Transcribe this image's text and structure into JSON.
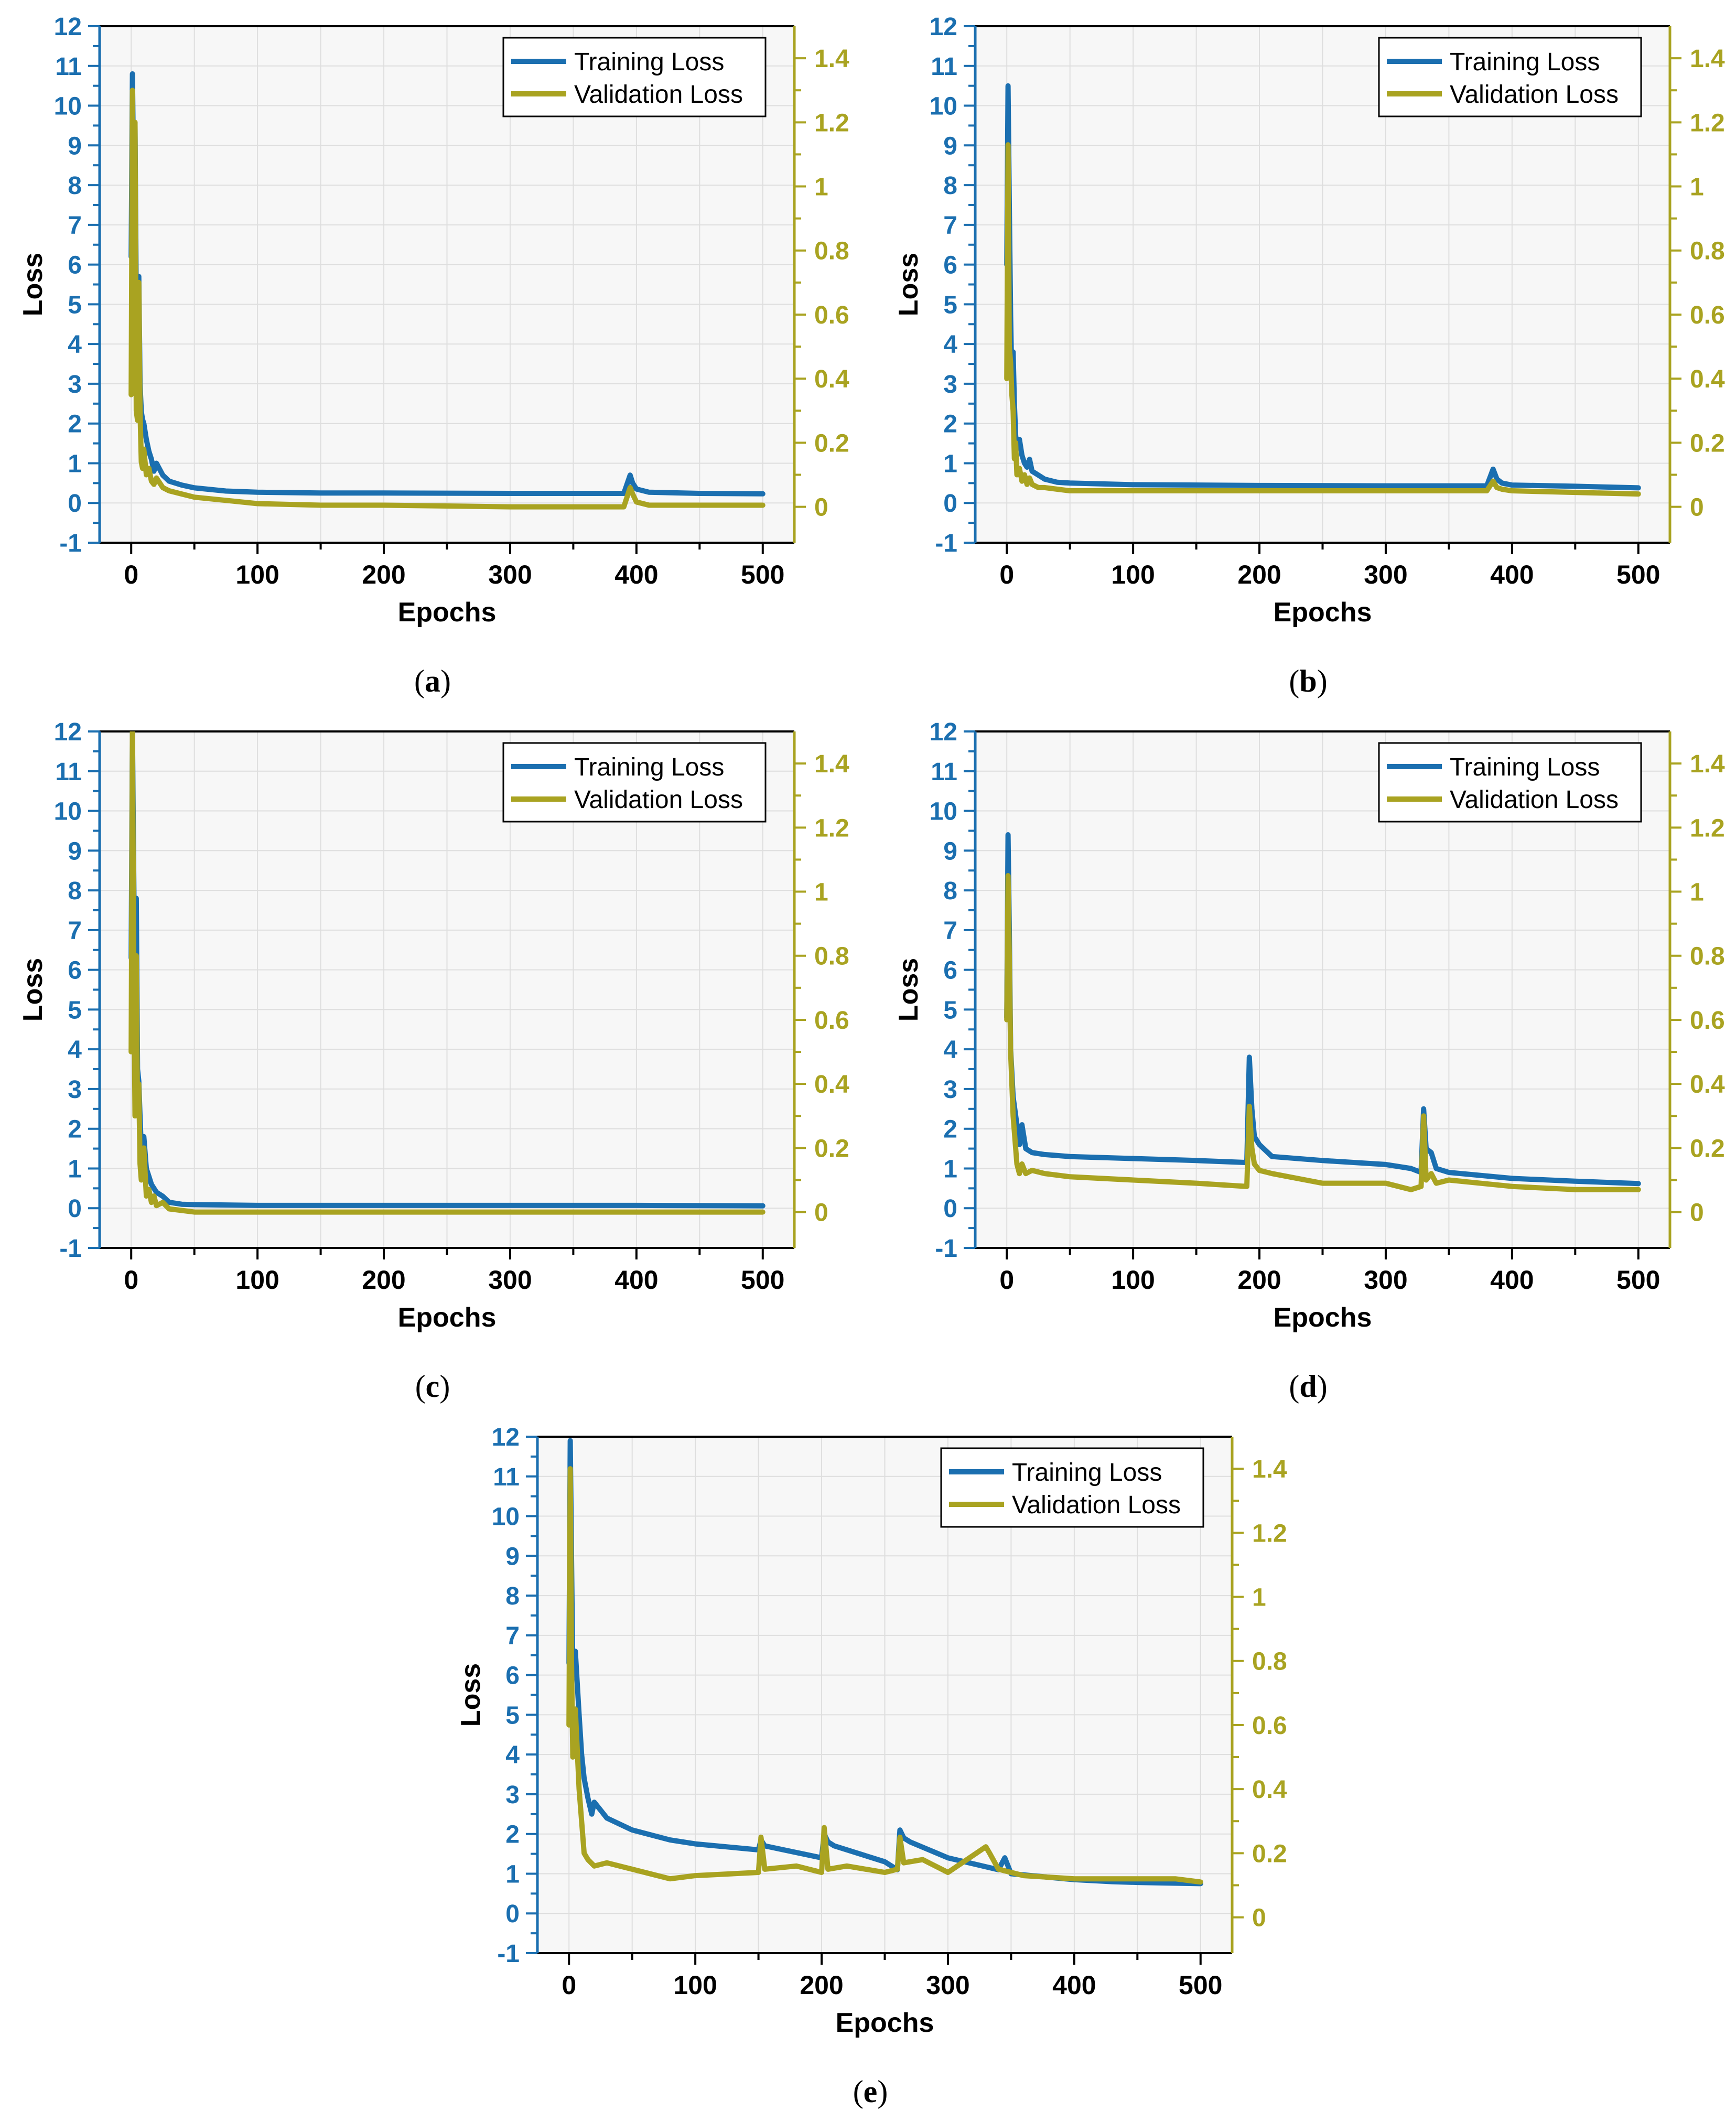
{
  "colors": {
    "training": "#1b6fb0",
    "validation": "#a9a321",
    "plot_bg": "#f7f7f7",
    "grid": "#dedede"
  },
  "chart_data": [
    {
      "id": "a",
      "caption": "a",
      "type": "line",
      "xlabel": "Epochs",
      "ylabel": "Loss",
      "xlim": [
        -25,
        525
      ],
      "ylim": [
        -1,
        12
      ],
      "y2lim": [
        -0.112,
        1.5
      ],
      "grid": true,
      "legend": "top-right",
      "xticks": [
        "0",
        "100",
        "200",
        "300",
        "400",
        "500"
      ],
      "yticks": [
        "-1",
        "0",
        "1",
        "2",
        "3",
        "4",
        "5",
        "6",
        "7",
        "8",
        "9",
        "10",
        "11",
        "12"
      ],
      "y2ticks": [
        "0",
        "0.2",
        "0.4",
        "0.6",
        "0.8",
        "1",
        "1.2",
        "1.4"
      ],
      "series": [
        {
          "name": "Training Loss",
          "axis": "left",
          "x": [
            0,
            1,
            2,
            3,
            4,
            5,
            6,
            7,
            8,
            9,
            10,
            12,
            14,
            16,
            18,
            20,
            25,
            30,
            40,
            50,
            75,
            100,
            150,
            200,
            300,
            390,
            395,
            397,
            400,
            410,
            450,
            500
          ],
          "y": [
            6.2,
            10.8,
            8.0,
            9.5,
            5.0,
            3.2,
            5.7,
            3.0,
            2.3,
            2.1,
            2.0,
            1.6,
            1.3,
            1.1,
            0.8,
            1.0,
            0.7,
            0.55,
            0.45,
            0.38,
            0.3,
            0.27,
            0.25,
            0.25,
            0.24,
            0.24,
            0.7,
            0.5,
            0.35,
            0.27,
            0.24,
            0.23
          ]
        },
        {
          "name": "Validation Loss",
          "axis": "right",
          "x": [
            0,
            1,
            2,
            3,
            4,
            5,
            6,
            7,
            8,
            9,
            10,
            12,
            14,
            16,
            18,
            20,
            25,
            30,
            40,
            50,
            75,
            100,
            150,
            200,
            300,
            390,
            395,
            397,
            400,
            410,
            450,
            500
          ],
          "y": [
            0.35,
            1.3,
            0.6,
            1.2,
            0.3,
            0.27,
            0.7,
            0.3,
            0.14,
            0.12,
            0.18,
            0.1,
            0.12,
            0.08,
            0.07,
            0.09,
            0.06,
            0.05,
            0.04,
            0.03,
            0.02,
            0.01,
            0.005,
            0.005,
            0.0,
            0.0,
            0.06,
            0.04,
            0.015,
            0.005,
            0.005,
            0.005
          ]
        }
      ]
    },
    {
      "id": "b",
      "caption": "b",
      "type": "line",
      "xlabel": "Epochs",
      "ylabel": "Loss",
      "xlim": [
        -25,
        525
      ],
      "ylim": [
        -1,
        12
      ],
      "y2lim": [
        -0.112,
        1.5
      ],
      "grid": true,
      "legend": "top-right",
      "xticks": [
        "0",
        "100",
        "200",
        "300",
        "400",
        "500"
      ],
      "yticks": [
        "-1",
        "0",
        "1",
        "2",
        "3",
        "4",
        "5",
        "6",
        "7",
        "8",
        "9",
        "10",
        "11",
        "12"
      ],
      "y2ticks": [
        "0",
        "0.2",
        "0.4",
        "0.6",
        "0.8",
        "1",
        "1.2",
        "1.4"
      ],
      "series": [
        {
          "name": "Training Loss",
          "axis": "left",
          "x": [
            0,
            1,
            2,
            3,
            4,
            5,
            6,
            7,
            8,
            10,
            12,
            14,
            16,
            18,
            20,
            25,
            30,
            40,
            50,
            100,
            200,
            300,
            380,
            385,
            388,
            392,
            400,
            450,
            500
          ],
          "y": [
            6.0,
            10.5,
            7.5,
            4.7,
            3.0,
            3.8,
            2.5,
            1.7,
            1.4,
            1.6,
            1.2,
            1.0,
            0.9,
            1.1,
            0.8,
            0.7,
            0.6,
            0.52,
            0.5,
            0.46,
            0.44,
            0.43,
            0.43,
            0.85,
            0.6,
            0.5,
            0.45,
            0.42,
            0.38
          ]
        },
        {
          "name": "Validation Loss",
          "axis": "right",
          "x": [
            0,
            1,
            2,
            3,
            4,
            5,
            6,
            7,
            8,
            10,
            12,
            14,
            16,
            18,
            20,
            25,
            30,
            40,
            50,
            100,
            200,
            300,
            380,
            385,
            388,
            392,
            400,
            450,
            500
          ],
          "y": [
            0.4,
            1.13,
            0.5,
            0.45,
            0.35,
            0.3,
            0.15,
            0.2,
            0.1,
            0.12,
            0.08,
            0.1,
            0.07,
            0.09,
            0.07,
            0.06,
            0.06,
            0.055,
            0.05,
            0.05,
            0.05,
            0.05,
            0.05,
            0.08,
            0.06,
            0.055,
            0.05,
            0.045,
            0.04
          ]
        }
      ]
    },
    {
      "id": "c",
      "caption": "c",
      "type": "line",
      "xlabel": "Epochs",
      "ylabel": "Loss",
      "xlim": [
        -25,
        525
      ],
      "ylim": [
        -1,
        12
      ],
      "y2lim": [
        -0.112,
        1.5
      ],
      "grid": true,
      "legend": "top-right",
      "xticks": [
        "0",
        "100",
        "200",
        "300",
        "400",
        "500"
      ],
      "yticks": [
        "-1",
        "0",
        "1",
        "2",
        "3",
        "4",
        "5",
        "6",
        "7",
        "8",
        "9",
        "10",
        "11",
        "12"
      ],
      "y2ticks": [
        "0",
        "0.2",
        "0.4",
        "0.6",
        "0.8",
        "1",
        "1.2",
        "1.4"
      ],
      "series": [
        {
          "name": "Training Loss",
          "axis": "left",
          "x": [
            0,
            1,
            2,
            3,
            4,
            5,
            6,
            7,
            8,
            10,
            12,
            14,
            16,
            18,
            20,
            25,
            30,
            40,
            50,
            100,
            200,
            300,
            400,
            500
          ],
          "y": [
            6.3,
            12,
            8.5,
            5.0,
            7.8,
            3.5,
            3.2,
            2.3,
            1.5,
            1.8,
            1.0,
            0.8,
            0.6,
            0.5,
            0.4,
            0.3,
            0.15,
            0.1,
            0.09,
            0.07,
            0.07,
            0.07,
            0.07,
            0.06
          ]
        },
        {
          "name": "Validation Loss",
          "axis": "right",
          "x": [
            0,
            1,
            2,
            3,
            4,
            5,
            6,
            7,
            8,
            10,
            12,
            14,
            16,
            18,
            20,
            25,
            30,
            40,
            50,
            100,
            200,
            300,
            400,
            500
          ],
          "y": [
            0.5,
            1.5,
            0.8,
            0.3,
            0.8,
            0.3,
            0.4,
            0.15,
            0.1,
            0.2,
            0.05,
            0.07,
            0.03,
            0.05,
            0.02,
            0.03,
            0.01,
            0.005,
            0.0,
            0.0,
            0.0,
            0.0,
            0.0,
            0.0
          ]
        }
      ]
    },
    {
      "id": "d",
      "caption": "d",
      "type": "line",
      "xlabel": "Epochs",
      "ylabel": "Loss",
      "xlim": [
        -25,
        525
      ],
      "ylim": [
        -1,
        12
      ],
      "y2lim": [
        -0.112,
        1.5
      ],
      "grid": true,
      "legend": "top-right",
      "xticks": [
        "0",
        "100",
        "200",
        "300",
        "400",
        "500"
      ],
      "yticks": [
        "-1",
        "0",
        "1",
        "2",
        "3",
        "4",
        "5",
        "6",
        "7",
        "8",
        "9",
        "10",
        "11",
        "12"
      ],
      "y2ticks": [
        "0",
        "0.2",
        "0.4",
        "0.6",
        "0.8",
        "1",
        "1.2",
        "1.4"
      ],
      "series": [
        {
          "name": "Training Loss",
          "axis": "left",
          "x": [
            0,
            1,
            2,
            3,
            5,
            8,
            10,
            12,
            15,
            20,
            30,
            50,
            100,
            150,
            190,
            192,
            194,
            196,
            200,
            210,
            250,
            300,
            320,
            328,
            330,
            332,
            336,
            340,
            350,
            400,
            450,
            500
          ],
          "y": [
            4.8,
            9.4,
            7.0,
            4.0,
            2.8,
            2.1,
            1.6,
            2.1,
            1.5,
            1.4,
            1.35,
            1.3,
            1.25,
            1.2,
            1.15,
            3.8,
            2.5,
            1.8,
            1.6,
            1.3,
            1.2,
            1.1,
            1.0,
            0.9,
            2.5,
            1.5,
            1.4,
            1.0,
            0.9,
            0.75,
            0.68,
            0.62
          ]
        },
        {
          "name": "Validation Loss",
          "axis": "right",
          "x": [
            0,
            1,
            2,
            3,
            5,
            8,
            10,
            12,
            15,
            20,
            30,
            50,
            100,
            150,
            190,
            192,
            194,
            196,
            200,
            210,
            250,
            300,
            320,
            328,
            330,
            332,
            336,
            340,
            350,
            400,
            450,
            500
          ],
          "y": [
            0.6,
            1.05,
            0.8,
            0.5,
            0.3,
            0.15,
            0.12,
            0.15,
            0.12,
            0.13,
            0.12,
            0.11,
            0.1,
            0.09,
            0.08,
            0.33,
            0.2,
            0.15,
            0.13,
            0.12,
            0.09,
            0.09,
            0.07,
            0.08,
            0.3,
            0.1,
            0.12,
            0.09,
            0.1,
            0.08,
            0.07,
            0.07
          ]
        }
      ]
    },
    {
      "id": "e",
      "caption": "e",
      "type": "line",
      "xlabel": "Epochs",
      "ylabel": "Loss",
      "xlim": [
        -25,
        525
      ],
      "ylim": [
        -1,
        12
      ],
      "y2lim": [
        -0.112,
        1.5
      ],
      "grid": true,
      "legend": "top-right",
      "xticks": [
        "0",
        "100",
        "200",
        "300",
        "400",
        "500"
      ],
      "yticks": [
        "-1",
        "0",
        "1",
        "2",
        "3",
        "4",
        "5",
        "6",
        "7",
        "8",
        "9",
        "10",
        "11",
        "12"
      ],
      "y2ticks": [
        "0",
        "0.2",
        "0.4",
        "0.6",
        "0.8",
        "1",
        "1.2",
        "1.4"
      ],
      "series": [
        {
          "name": "Training Loss",
          "axis": "left",
          "x": [
            0,
            1,
            2,
            3,
            5,
            8,
            10,
            12,
            15,
            18,
            20,
            25,
            30,
            50,
            80,
            100,
            150,
            152,
            155,
            200,
            202,
            205,
            210,
            250,
            260,
            262,
            265,
            270,
            300,
            340,
            345,
            350,
            400,
            430,
            450,
            500
          ],
          "y": [
            6.3,
            11.9,
            9.0,
            6.0,
            6.6,
            5.0,
            4.0,
            3.4,
            2.9,
            2.5,
            2.8,
            2.6,
            2.4,
            2.1,
            1.85,
            1.75,
            1.6,
            1.85,
            1.7,
            1.4,
            2.0,
            1.8,
            1.7,
            1.3,
            1.1,
            2.1,
            1.9,
            1.8,
            1.4,
            1.1,
            1.4,
            1.0,
            0.85,
            0.8,
            0.78,
            0.75
          ]
        },
        {
          "name": "Validation Loss",
          "axis": "right",
          "x": [
            0,
            1,
            2,
            3,
            5,
            8,
            10,
            12,
            15,
            20,
            30,
            50,
            80,
            100,
            150,
            152,
            155,
            180,
            200,
            202,
            205,
            220,
            250,
            260,
            262,
            265,
            280,
            300,
            330,
            333,
            340,
            360,
            400,
            450,
            480,
            500
          ],
          "y": [
            0.6,
            1.4,
            0.8,
            0.5,
            0.65,
            0.4,
            0.3,
            0.2,
            0.18,
            0.16,
            0.17,
            0.15,
            0.12,
            0.13,
            0.14,
            0.25,
            0.15,
            0.16,
            0.14,
            0.28,
            0.15,
            0.16,
            0.14,
            0.15,
            0.25,
            0.17,
            0.18,
            0.14,
            0.22,
            0.2,
            0.15,
            0.13,
            0.12,
            0.12,
            0.12,
            0.11
          ]
        }
      ]
    }
  ]
}
